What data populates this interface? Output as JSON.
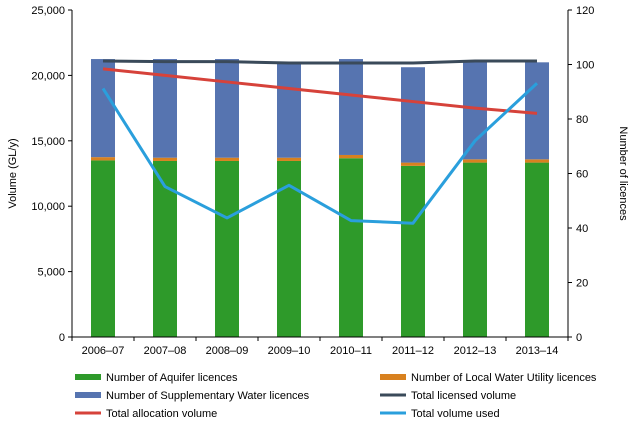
{
  "chart_data": {
    "type": "bar",
    "stacked": true,
    "categories": [
      "2006–07",
      "2007–08",
      "2008–09",
      "2009–10",
      "2010–11",
      "2011–12",
      "2012–13",
      "2013–14"
    ],
    "ylabel": "Volume (GL/y)",
    "y2label": "Number of licences",
    "ylim": [
      0,
      25000
    ],
    "y2lim": [
      0,
      120
    ],
    "yticks": [
      "0",
      "5,000",
      "10,000",
      "15,000",
      "20,000",
      "25,000"
    ],
    "y2ticks": [
      "0",
      "20",
      "40",
      "60",
      "80",
      "100",
      "120"
    ],
    "grid": false,
    "legend_position": "bottom",
    "colors": {
      "aquifer": "#2e9a2a",
      "local_utility": "#d8811f",
      "supplementary": "#5674b0",
      "licensed": "#3a4a5a",
      "allocation": "#d6423a",
      "used": "#2a9fdc"
    },
    "bar_series": [
      {
        "name": "Number of Aquifer licences",
        "axis": "right",
        "values": [
          64.8,
          64.6,
          64.6,
          64.6,
          65.6,
          62.8,
          64.0,
          64.0
        ]
      },
      {
        "name": "Number of Local Water Utility licences",
        "axis": "right",
        "values": [
          1.2,
          1.2,
          1.2,
          1.2,
          1.2,
          1.2,
          1.2,
          1.2
        ]
      },
      {
        "name": "Number of Supplementary Water licences",
        "axis": "right",
        "values": [
          36.0,
          36.2,
          36.2,
          35.0,
          35.2,
          35.0,
          35.6,
          35.6
        ]
      }
    ],
    "line_series": [
      {
        "name": "Total licensed volume",
        "axis": "left",
        "values": [
          21100,
          21050,
          21050,
          20950,
          20950,
          20950,
          21100,
          21100
        ]
      },
      {
        "name": "Total allocation volume",
        "axis": "left",
        "values": [
          20500,
          20000,
          19500,
          19000,
          18500,
          18000,
          17500,
          17100
        ]
      },
      {
        "name": "Total volume used",
        "axis": "left",
        "values": [
          19000,
          11500,
          9100,
          11600,
          8900,
          8700,
          15000,
          19400
        ]
      }
    ]
  }
}
